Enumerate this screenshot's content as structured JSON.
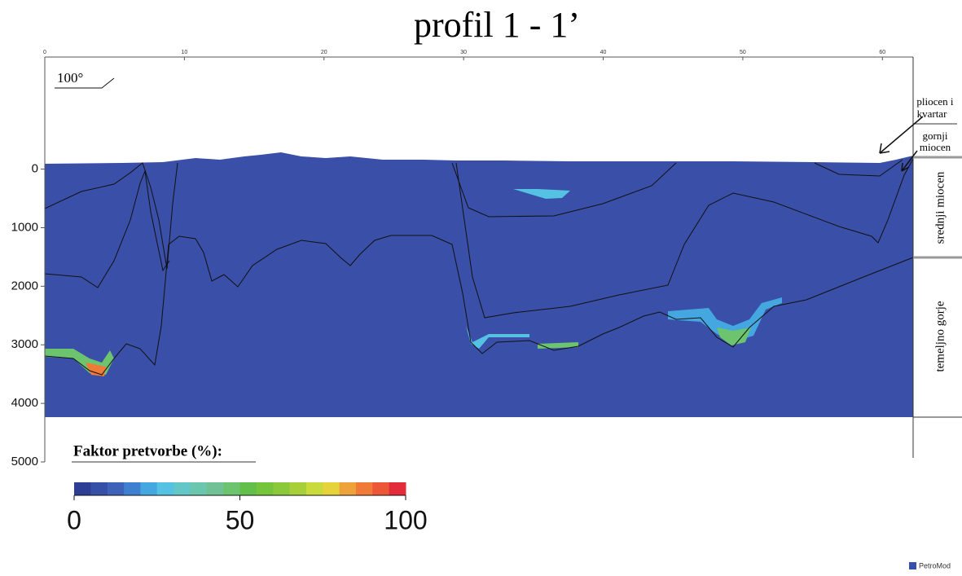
{
  "title": "profil 1 - 1’",
  "dip_label": "100°",
  "distance_axis": {
    "lim": [
      0,
      62.2
    ],
    "ticks": [
      0,
      10,
      20,
      30,
      40,
      50,
      60
    ]
  },
  "depth_axis": {
    "lim": [
      -1900,
      5000
    ],
    "ticks": [
      0,
      1000,
      2000,
      3000,
      4000,
      5000
    ]
  },
  "layers": {
    "pliocen_kvartar": [
      "pliocen i",
      "kvartar"
    ],
    "gornji_miocen": [
      "gornji",
      "miocen"
    ],
    "srednji_miocen": "srednji miocen",
    "temeljno_gorje": "temeljno gorje"
  },
  "colorbar": {
    "title": "Faktor pretvorbe (%):",
    "lim": [
      0,
      100
    ],
    "ticks": [
      0,
      50,
      100
    ],
    "colors": [
      "#2d3e94",
      "#3650a8",
      "#3d62b8",
      "#3f7fd0",
      "#44a7e0",
      "#55c2e3",
      "#63c7c8",
      "#6ac7ad",
      "#70c296",
      "#6cc46e",
      "#62bf4a",
      "#74c43c",
      "#8cc93a",
      "#a6cf3a",
      "#c9da3c",
      "#e6d23a",
      "#eea23a",
      "#f07a37",
      "#ec5737",
      "#e22c3a"
    ]
  },
  "logo": "PetroMod"
}
